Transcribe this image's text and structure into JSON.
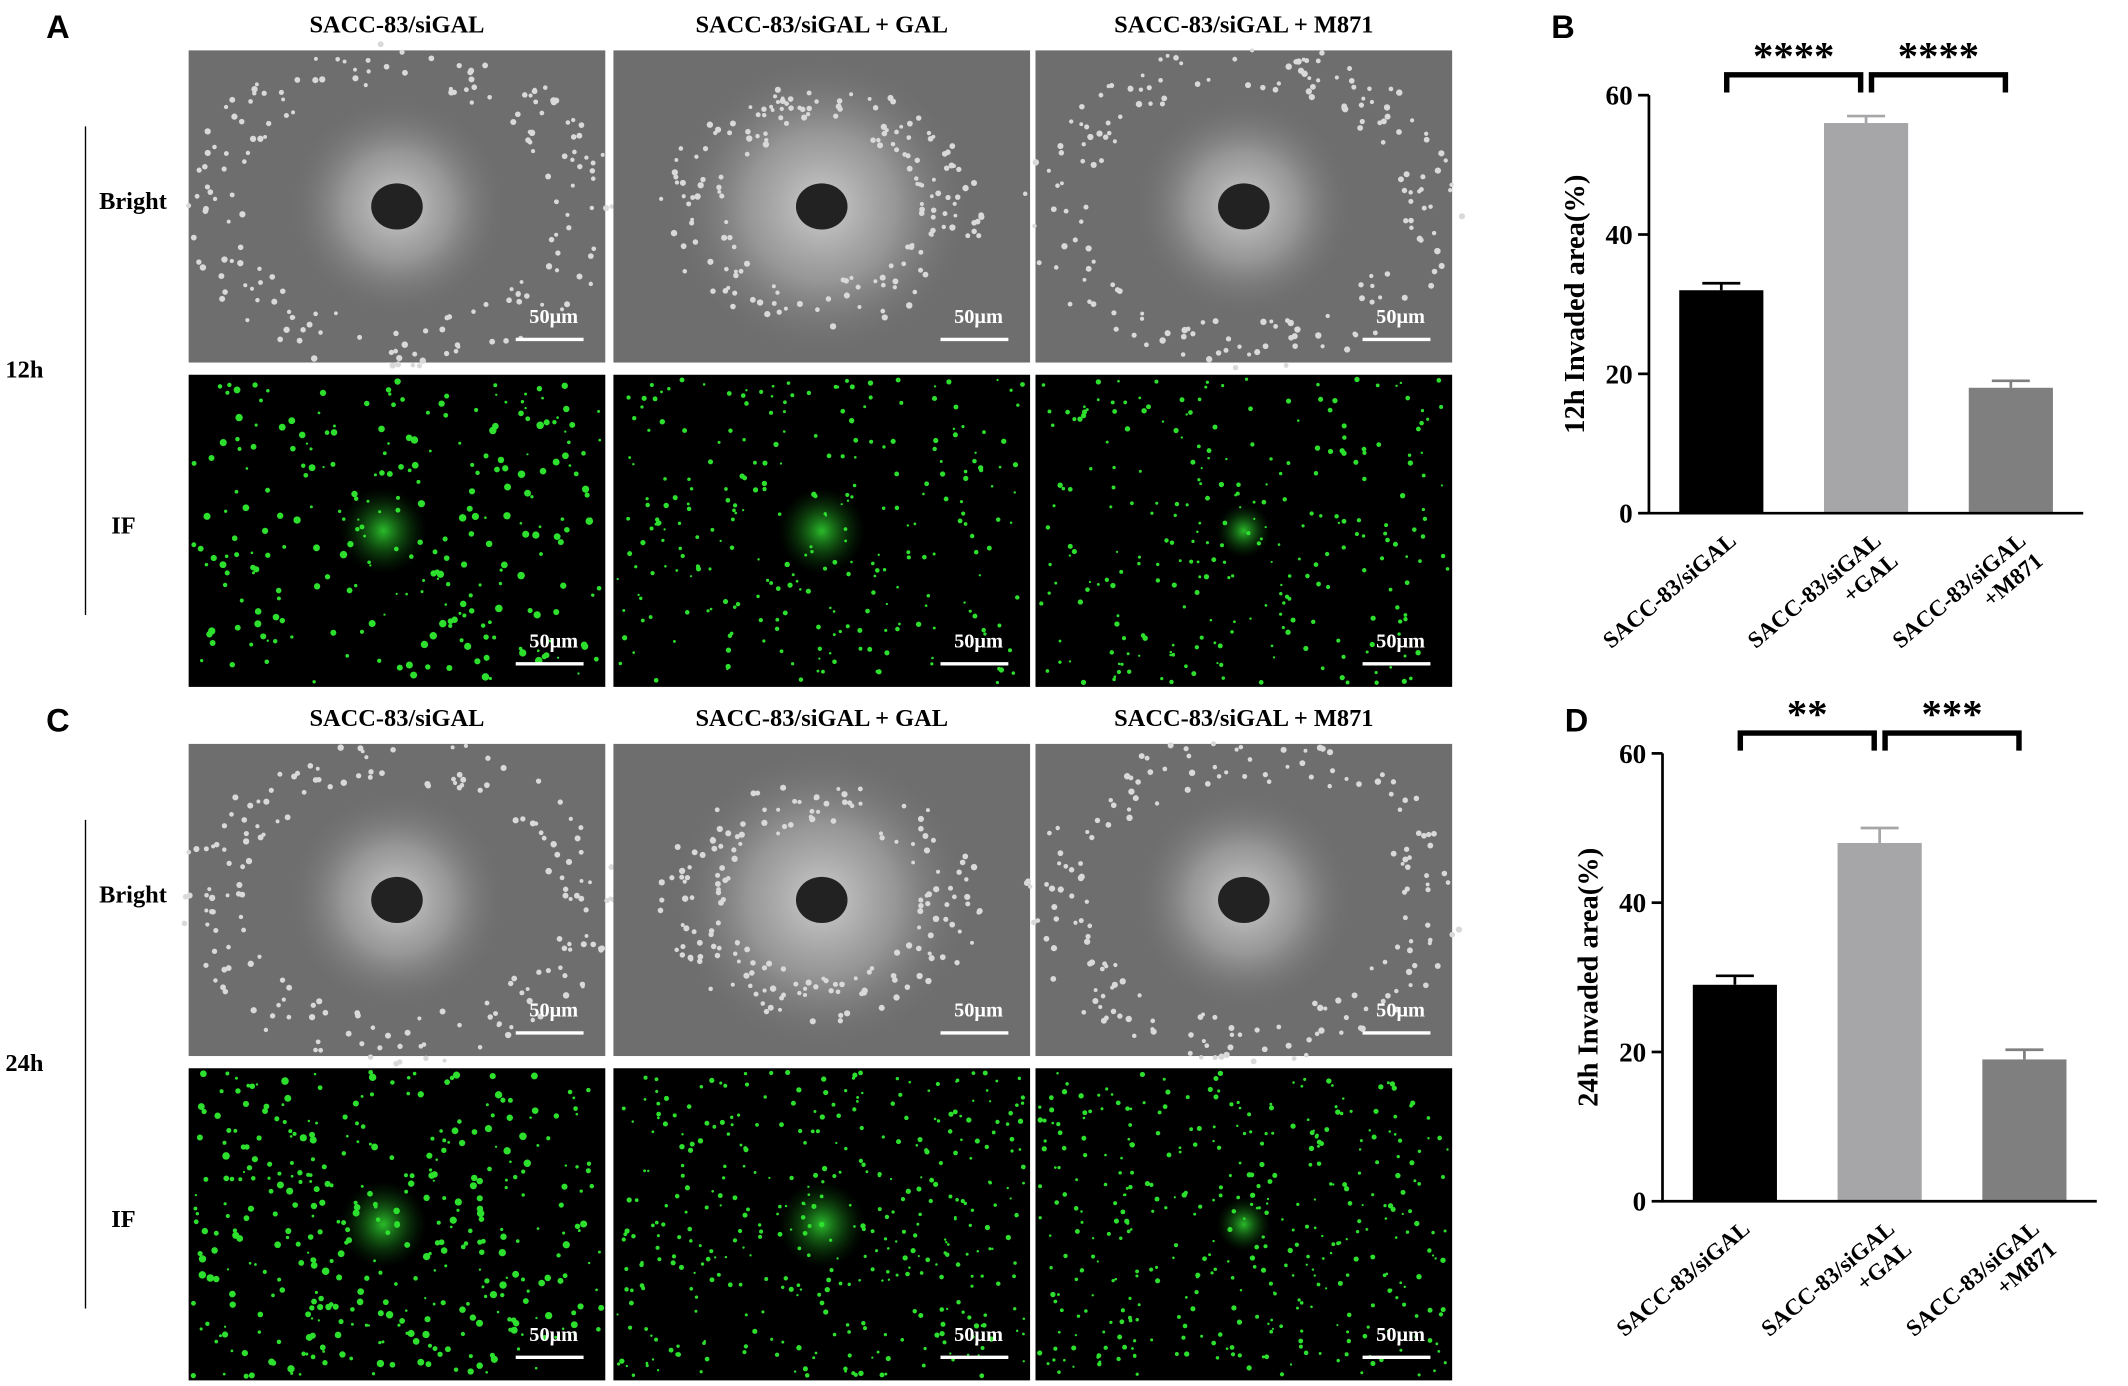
{
  "panels": [
    {
      "letter": "A",
      "columns": [
        "SACC-83/siGAL",
        "SACC-83/siGAL + GAL",
        "SACC-83/siGAL + M871"
      ],
      "rows": [
        "Bright",
        "IF"
      ],
      "time": "12h",
      "scale_bar": "50μm"
    },
    {
      "letter": "C",
      "columns": [
        "SACC-83/siGAL",
        "SACC-83/siGAL + GAL",
        "SACC-83/siGAL + M871"
      ],
      "rows": [
        "Bright",
        "IF"
      ],
      "time": "24h",
      "scale_bar": "50μm"
    }
  ],
  "chart_data": [
    {
      "type": "bar",
      "letter": "B",
      "y_label": "12h Invaded area(%)",
      "categories": [
        "SACC-83/siGAL",
        "SACC-83/siGAL\n+GAL",
        "SACC-83/siGAL\n+M871"
      ],
      "values": [
        32,
        56,
        18
      ],
      "errors": [
        1,
        1,
        1
      ],
      "colors": [
        "#000000",
        "#a6a6a9",
        "#7f7f7f"
      ],
      "ylim": [
        0,
        60
      ],
      "yticks": [
        0,
        20,
        40,
        60
      ],
      "significance": [
        {
          "from": 0,
          "to": 1,
          "label": "****"
        },
        {
          "from": 1,
          "to": 2,
          "label": "****"
        }
      ]
    },
    {
      "type": "bar",
      "letter": "D",
      "y_label": "24h Invaded area(%)",
      "categories": [
        "SACC-83/siGAL",
        "SACC-83/siGAL\n+GAL",
        "SACC-83/siGAL\n+M871"
      ],
      "values": [
        29,
        48,
        19
      ],
      "errors": [
        1.2,
        2,
        1.3
      ],
      "colors": [
        "#000000",
        "#a6a6a9",
        "#7f7f7f"
      ],
      "ylim": [
        0,
        60
      ],
      "yticks": [
        0,
        20,
        40,
        60
      ],
      "significance": [
        {
          "from": 0,
          "to": 1,
          "label": "**"
        },
        {
          "from": 1,
          "to": 2,
          "label": "***"
        }
      ]
    }
  ]
}
